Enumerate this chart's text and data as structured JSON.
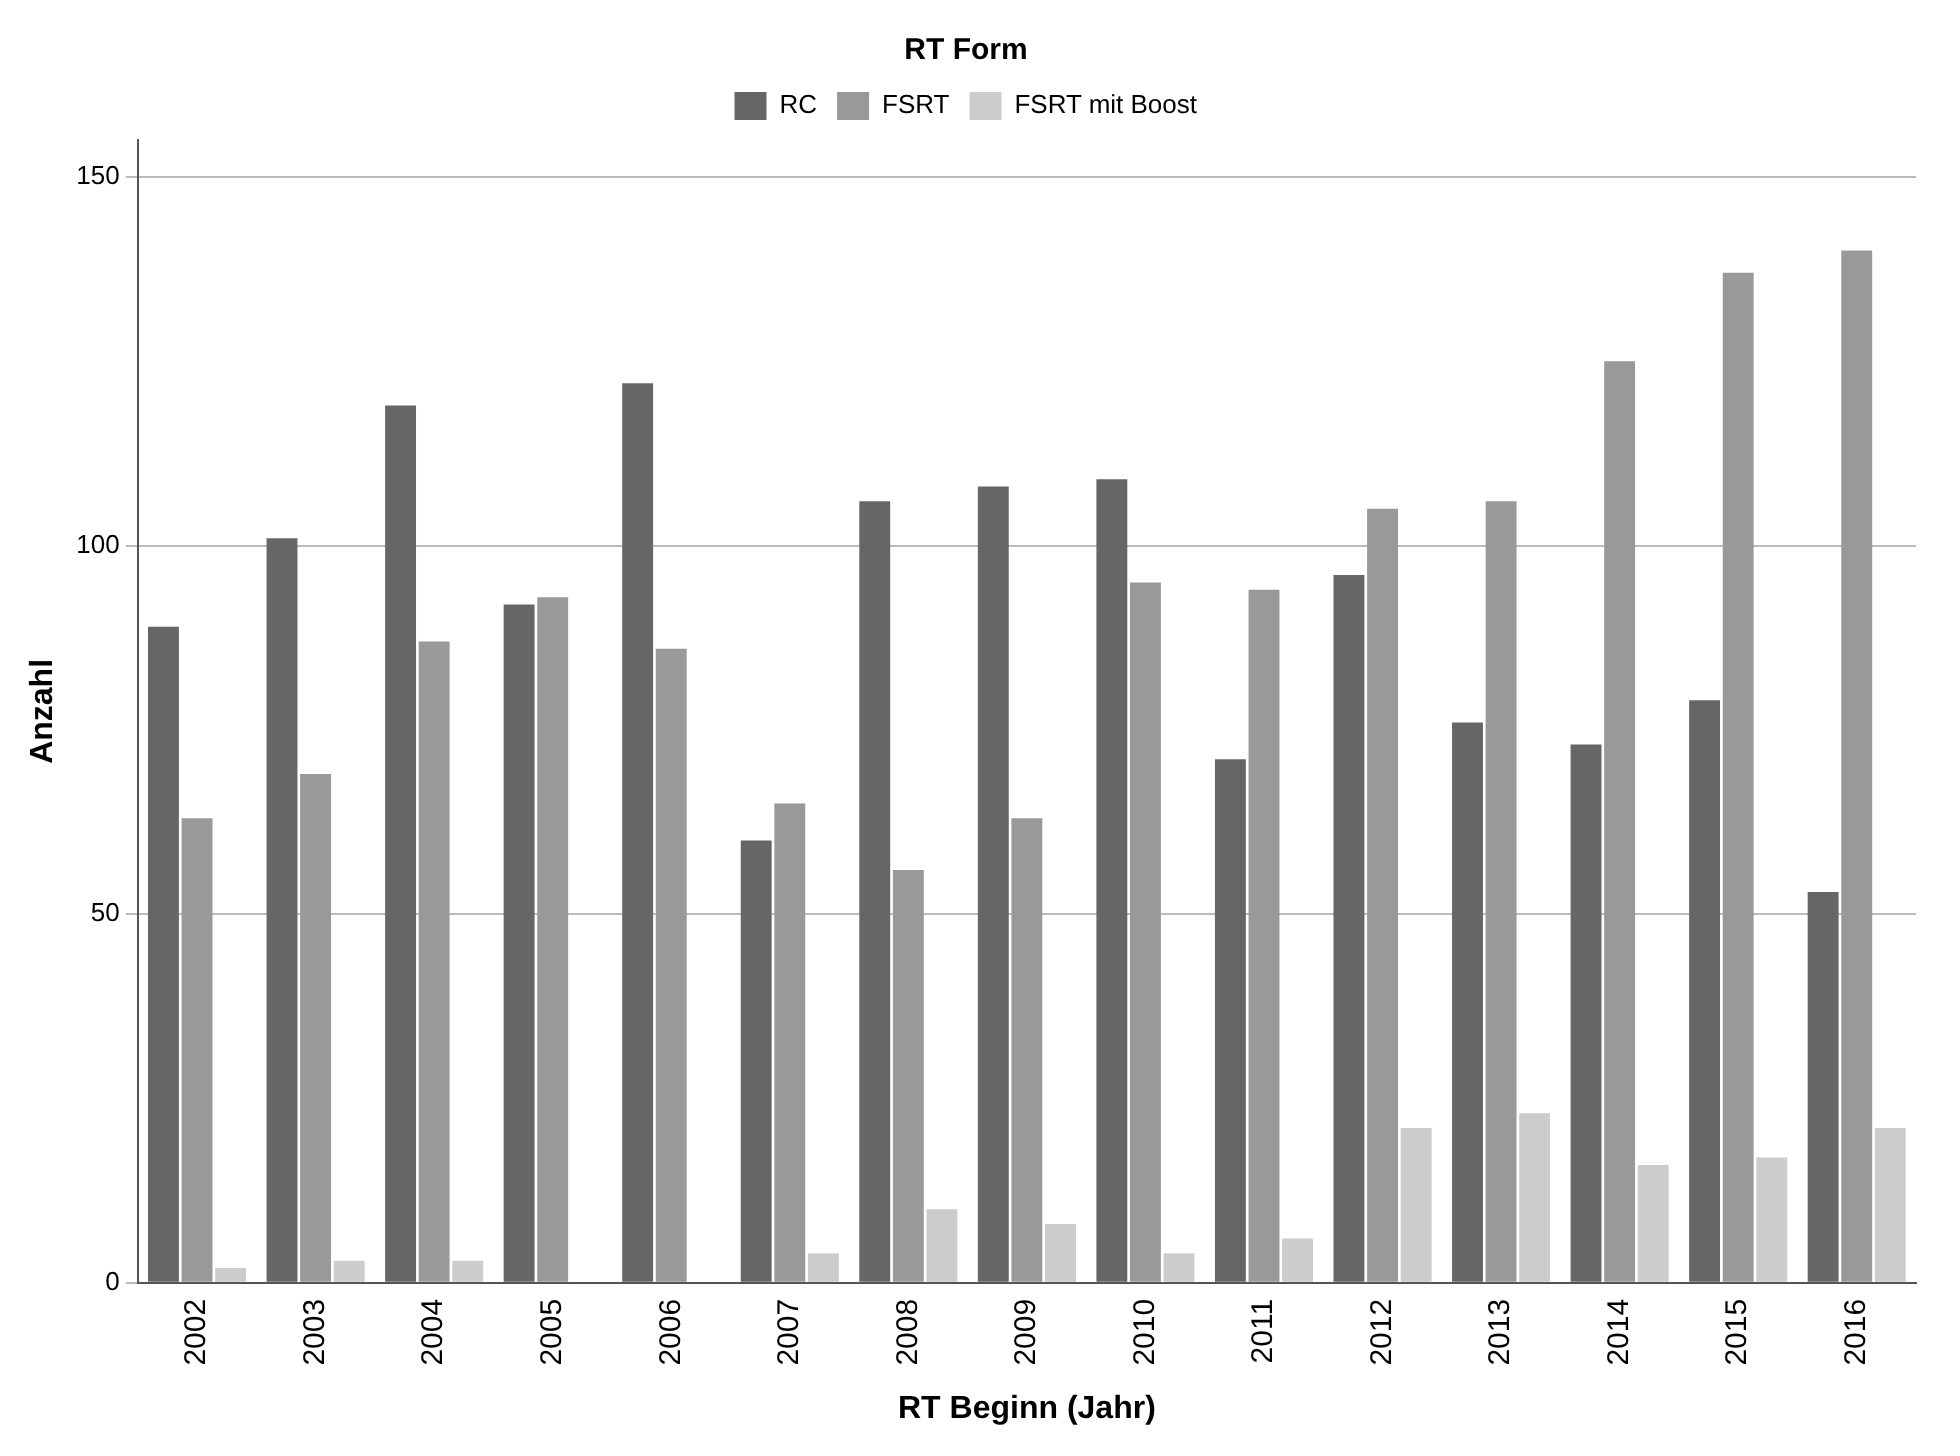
{
  "chart_data": {
    "type": "bar",
    "xlabel": "RT Beginn (Jahr)",
    "ylabel": "Anzahl",
    "legend_title": "RT Form",
    "categories": [
      "2002",
      "2003",
      "2004",
      "2005",
      "2006",
      "2007",
      "2008",
      "2009",
      "2010",
      "2011",
      "2012",
      "2013",
      "2014",
      "2015",
      "2016"
    ],
    "series": [
      {
        "name": "RC",
        "color": "#666666",
        "values": [
          89,
          101,
          119,
          92,
          122,
          60,
          106,
          108,
          109,
          71,
          96,
          76,
          73,
          79,
          53
        ]
      },
      {
        "name": "FSRT",
        "color": "#999999",
        "values": [
          63,
          69,
          87,
          93,
          86,
          65,
          56,
          63,
          95,
          94,
          105,
          106,
          125,
          137,
          140
        ]
      },
      {
        "name": "FSRT mit Boost",
        "color": "#cccccc",
        "values": [
          2,
          3,
          3,
          0,
          0,
          4,
          10,
          8,
          4,
          6,
          21,
          23,
          16,
          17,
          21
        ]
      }
    ],
    "ylim": [
      0,
      155
    ],
    "yticks": [
      0,
      50,
      100,
      150
    ],
    "grid": "y",
    "legend": "top"
  }
}
